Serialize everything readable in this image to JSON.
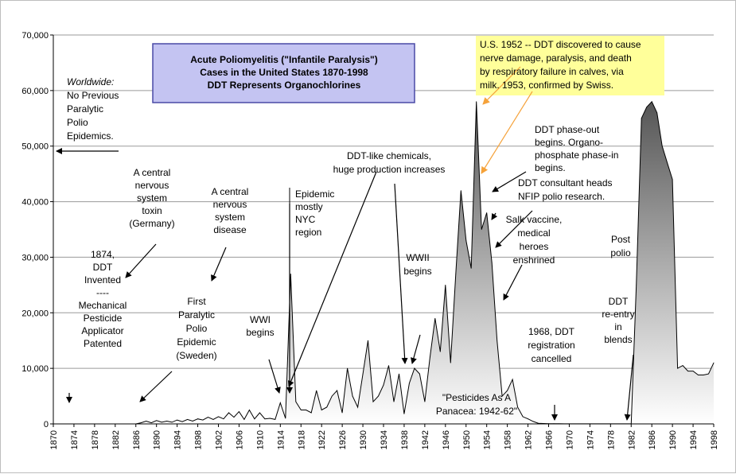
{
  "colors": {
    "title_box_fill": "#c4c4f2",
    "title_box_stroke": "#4a4aa6",
    "callout_fill": "#ffff9a",
    "arrow_orange": "#f5a23a",
    "area_dark": "#5a5a5a",
    "area_light": "#ffffff"
  },
  "chart_data": {
    "type": "area",
    "title": [
      "Acute Poliomyelitis (\"Infantile Paralysis\")",
      "Cases in the United States    1870-1998",
      "DDT Represents Organochlorines"
    ],
    "xlabel": "",
    "ylabel": "",
    "xlim": [
      1870,
      1998
    ],
    "ylim": [
      0,
      70000
    ],
    "y_ticks": [
      0,
      10000,
      20000,
      30000,
      40000,
      50000,
      60000,
      70000
    ],
    "y_tick_labels": [
      "0",
      "10,000",
      "20,000",
      "30,000",
      "40,000",
      "50,000",
      "60,000",
      "70,000"
    ],
    "x_ticks": [
      1870,
      1874,
      1878,
      1882,
      1886,
      1890,
      1894,
      1898,
      1902,
      1906,
      1910,
      1914,
      1918,
      1922,
      1926,
      1930,
      1934,
      1938,
      1942,
      1946,
      1950,
      1954,
      1958,
      1962,
      1966,
      1970,
      1974,
      1978,
      1982,
      1986,
      1990,
      1994,
      1998
    ],
    "grid": true,
    "legend": "none",
    "series": [
      {
        "x": [
          1870,
          1886,
          1887,
          1888,
          1889,
          1890,
          1891,
          1892,
          1893,
          1894,
          1895,
          1896,
          1897,
          1898,
          1899,
          1900,
          1901,
          1902,
          1903,
          1904,
          1905,
          1906,
          1907,
          1908,
          1909,
          1910,
          1911,
          1912,
          1913,
          1914,
          1915,
          1916,
          1917,
          1918,
          1919,
          1920,
          1921,
          1922,
          1923,
          1924,
          1925,
          1926,
          1927,
          1928,
          1929,
          1930,
          1931,
          1932,
          1933,
          1934,
          1935,
          1936,
          1937,
          1938,
          1939,
          1940,
          1941,
          1942,
          1943,
          1944,
          1945,
          1946,
          1947,
          1948,
          1949,
          1950,
          1951,
          1952,
          1953,
          1954,
          1955,
          1956,
          1957,
          1958,
          1959,
          1960,
          1961,
          1962,
          1963,
          1964,
          1965,
          1966,
          1967,
          1968,
          1969,
          1970,
          1982,
          1983,
          1984,
          1985,
          1986,
          1987,
          1988,
          1989,
          1990,
          1991,
          1992,
          1993,
          1994,
          1995,
          1996,
          1997,
          1998
        ],
        "y": [
          0,
          0,
          200,
          500,
          200,
          600,
          300,
          500,
          300,
          700,
          400,
          800,
          500,
          900,
          700,
          1200,
          800,
          1300,
          900,
          2000,
          1200,
          2200,
          800,
          2500,
          900,
          2000,
          900,
          1000,
          800,
          3800,
          1000,
          27000,
          4000,
          2500,
          2500,
          2000,
          6000,
          2500,
          3000,
          5000,
          6000,
          2000,
          10000,
          5000,
          3000,
          9000,
          15000,
          4000,
          5000,
          7000,
          10500,
          4000,
          9000,
          1800,
          7300,
          10000,
          9000,
          4000,
          12000,
          19000,
          13000,
          25000,
          11000,
          27000,
          42000,
          33000,
          28000,
          58000,
          35000,
          38000,
          29000,
          15000,
          5000,
          6000,
          8000,
          3000,
          1300,
          900,
          450,
          120,
          70,
          50,
          40,
          30,
          20,
          20,
          20,
          25000,
          55000,
          57000,
          58000,
          56000,
          50000,
          47000,
          44000,
          10000,
          10500,
          9500,
          9500,
          8800,
          8800,
          9000,
          11000
        ]
      }
    ],
    "annotations": [
      {
        "lines": [
          "Worldwide:",
          "No Previous",
          "Paralytic",
          "Polio",
          "Epidemics."
        ]
      },
      {
        "lines": [
          "1874,",
          "DDT",
          "Invented",
          "----",
          "Mechanical",
          "Pesticide",
          "Applicator",
          "Patented"
        ]
      },
      {
        "lines": [
          "A central",
          "nervous",
          "system",
          "toxin",
          "(Germany)"
        ]
      },
      {
        "lines": [
          "A central",
          "nervous",
          "system",
          "disease"
        ]
      },
      {
        "lines": [
          "First",
          "Paralytic",
          "Polio",
          "Epidemic",
          "(Sweden)"
        ]
      },
      {
        "lines": [
          "WWI",
          "begins"
        ]
      },
      {
        "lines": [
          "Epidemic",
          "mostly",
          "NYC",
          "region"
        ]
      },
      {
        "lines": [
          "DDT-like chemicals,",
          "huge production increases"
        ]
      },
      {
        "lines": [
          "WWII",
          "begins"
        ]
      },
      {
        "lines": [
          "\"Pesticides As A",
          "Panacea: 1942-62\""
        ]
      },
      {
        "lines": [
          "U.S. 1952 -- DDT discovered to cause",
          "nerve damage, paralysis, and death",
          "by respiratory failure in calves, via",
          "milk.  1953, confirmed by Swiss."
        ]
      },
      {
        "lines": [
          "DDT phase-out",
          "begins. Organo-",
          "phosphate phase-in",
          "begins."
        ]
      },
      {
        "lines": [
          "DDT consultant heads",
          "NFIP polio research."
        ]
      },
      {
        "lines": [
          "Salk vaccine,",
          "medical",
          "heroes",
          "enshrined"
        ]
      },
      {
        "lines": [
          "1968, DDT",
          "registration",
          "cancelled"
        ]
      },
      {
        "lines": [
          "DDT",
          "re-entry",
          "in",
          "blends"
        ]
      },
      {
        "lines": [
          "Post",
          "polio"
        ]
      }
    ]
  }
}
